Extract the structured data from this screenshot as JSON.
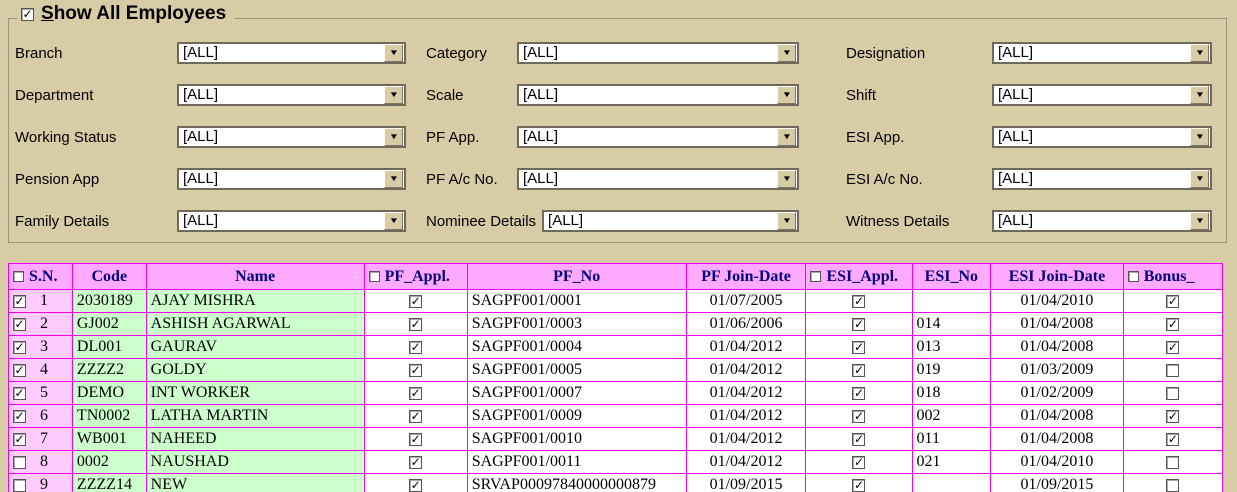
{
  "colors": {
    "panel_bg": "#d8cca6",
    "grid_header_bg": "#ffaaff",
    "grid_header_text": "#000080",
    "grid_line": "#f000f0",
    "sn_cell_bg": "#ffccff",
    "code_name_cell_bg": "#ccffcc"
  },
  "panel": {
    "title_prefix": "S",
    "title_rest": "how All Employees",
    "title_checkbox_checked": true,
    "check_glyph": "✓",
    "arrow_glyph": "▼",
    "sort_glyph": "△",
    "filters": [
      {
        "label": "Branch",
        "value": "[ALL]"
      },
      {
        "label": "Category",
        "value": "[ALL]"
      },
      {
        "label": "Designation",
        "value": "[ALL]"
      },
      {
        "label": "Department",
        "value": "[ALL]"
      },
      {
        "label": "Scale",
        "value": "[ALL]"
      },
      {
        "label": "Shift",
        "value": "[ALL]"
      },
      {
        "label": "Working Status",
        "value": "[ALL]"
      },
      {
        "label": "PF App.",
        "value": "[ALL]"
      },
      {
        "label": "ESI App.",
        "value": "[ALL]"
      },
      {
        "label": "Pension App",
        "value": "[ALL]"
      },
      {
        "label": "PF A/c No.",
        "value": "[ALL]"
      },
      {
        "label": "ESI A/c No.",
        "value": "[ALL]"
      },
      {
        "label": "Family Details",
        "value": "[ALL]"
      },
      {
        "label": "Nominee Details",
        "value": "[ALL]"
      },
      {
        "label": "Witness Details",
        "value": "[ALL]"
      }
    ]
  },
  "grid": {
    "headers": {
      "sn": "S.N.",
      "code": "Code",
      "name": "Name",
      "pf_appl": "PF_Appl.",
      "pf_no": "PF_No",
      "pf_join": "PF Join-Date",
      "esi_appl": "ESI_Appl.",
      "esi_no": "ESI_No",
      "esi_join": "ESI Join-Date",
      "bonus": "Bonus_"
    },
    "rows": [
      {
        "selected": true,
        "sn": "1",
        "code": "2030189",
        "name": "AJAY MISHRA",
        "pf_appl": true,
        "pf_no": "SAGPF001/0001",
        "pf_join": "01/07/2005",
        "esi_appl": true,
        "esi_no": "",
        "esi_join": "01/04/2010",
        "bonus": true
      },
      {
        "selected": true,
        "sn": "2",
        "code": "GJ002",
        "name": "ASHISH AGARWAL",
        "pf_appl": true,
        "pf_no": "SAGPF001/0003",
        "pf_join": "01/06/2006",
        "esi_appl": true,
        "esi_no": "014",
        "esi_join": "01/04/2008",
        "bonus": true
      },
      {
        "selected": true,
        "sn": "3",
        "code": "DL001",
        "name": "GAURAV",
        "pf_appl": true,
        "pf_no": "SAGPF001/0004",
        "pf_join": "01/04/2012",
        "esi_appl": true,
        "esi_no": "013",
        "esi_join": "01/04/2008",
        "bonus": true
      },
      {
        "selected": true,
        "sn": "4",
        "code": "ZZZZ2",
        "name": "GOLDY",
        "pf_appl": true,
        "pf_no": "SAGPF001/0005",
        "pf_join": "01/04/2012",
        "esi_appl": true,
        "esi_no": "019",
        "esi_join": "01/03/2009",
        "bonus": false
      },
      {
        "selected": true,
        "sn": "5",
        "code": "DEMO",
        "name": "INT WORKER",
        "pf_appl": true,
        "pf_no": "SAGPF001/0007",
        "pf_join": "01/04/2012",
        "esi_appl": true,
        "esi_no": "018",
        "esi_join": "01/02/2009",
        "bonus": false
      },
      {
        "selected": true,
        "sn": "6",
        "code": "TN0002",
        "name": "LATHA MARTIN",
        "pf_appl": true,
        "pf_no": "SAGPF001/0009",
        "pf_join": "01/04/2012",
        "esi_appl": true,
        "esi_no": "002",
        "esi_join": "01/04/2008",
        "bonus": true
      },
      {
        "selected": true,
        "sn": "7",
        "code": "WB001",
        "name": "NAHEED",
        "pf_appl": true,
        "pf_no": "SAGPF001/0010",
        "pf_join": "01/04/2012",
        "esi_appl": true,
        "esi_no": "011",
        "esi_join": "01/04/2008",
        "bonus": true
      },
      {
        "selected": false,
        "sn": "8",
        "code": "0002",
        "name": "NAUSHAD",
        "pf_appl": true,
        "pf_no": "SAGPF001/0011",
        "pf_join": "01/04/2012",
        "esi_appl": true,
        "esi_no": "021",
        "esi_join": "01/04/2010",
        "bonus": false
      },
      {
        "selected": false,
        "sn": "9",
        "code": "ZZZZ14",
        "name": "NEW",
        "pf_appl": true,
        "pf_no": "SRVAP00097840000000879",
        "pf_join": "01/09/2015",
        "esi_appl": true,
        "esi_no": "",
        "esi_join": "01/09/2015",
        "bonus": false
      }
    ]
  }
}
